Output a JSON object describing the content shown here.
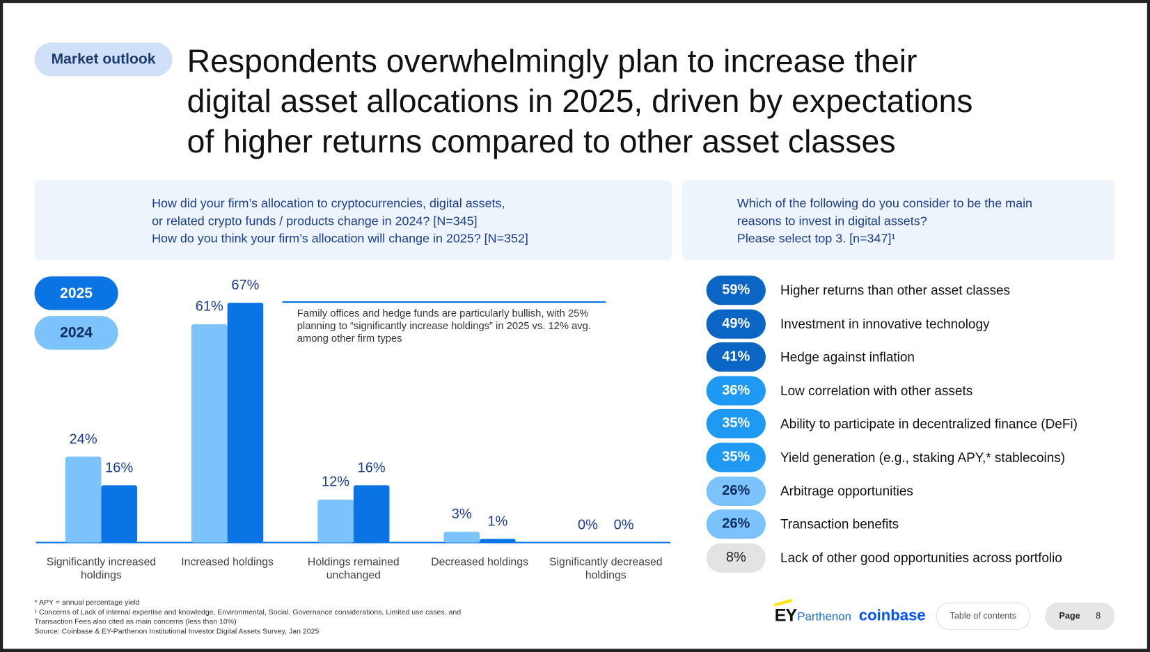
{
  "header": {
    "tag": "Market outlook",
    "title": [
      "Respondents overwhelmingly plan to increase their",
      "digital asset allocations in 2025, driven by expectations",
      "of higher returns compared to other asset classes"
    ]
  },
  "left_question": [
    "How did your firm’s allocation to cryptocurrencies, digital assets,",
    "or related crypto funds / products change in 2024? [N=345]",
    "How do you think your firm’s allocation will change in 2025? [N=352]"
  ],
  "right_question": [
    "Which of the following do you consider to be the main",
    "reasons to invest in digital assets?",
    "Please select top 3. [n=347]¹"
  ],
  "chart_data": {
    "type": "bar",
    "categories": [
      "Significantly increased holdings",
      "Increased holdings",
      "Holdings remained unchanged",
      "Decreased holdings",
      "Significantly decreased holdings"
    ],
    "series": [
      {
        "name": "2024",
        "color": "#7cc3fb",
        "values": [
          24,
          61,
          12,
          3,
          0
        ],
        "value_labels": [
          "24%",
          "61%",
          "12%",
          "3%",
          "0%"
        ]
      },
      {
        "name": "2025",
        "color": "#0a74e4",
        "values": [
          16,
          67,
          16,
          1,
          0
        ],
        "value_labels": [
          "16%",
          "67%",
          "16%",
          "1%",
          "0%"
        ]
      }
    ],
    "ylim": [
      0,
      100
    ],
    "annotation": "Family offices and hedge funds are particularly bullish, with 25% planning to “significantly increase holdings” in 2025 vs. 12% avg. among other firm types"
  },
  "reasons": [
    {
      "pct": "59%",
      "label": "Higher returns than other asset classes",
      "color": "#0a65c4"
    },
    {
      "pct": "49%",
      "label": "Investment in innovative technology",
      "color": "#0a65c4"
    },
    {
      "pct": "41%",
      "label": "Hedge against inflation",
      "color": "#0a65c4"
    },
    {
      "pct": "36%",
      "label": "Low correlation with other assets",
      "color": "#1e9af5"
    },
    {
      "pct": "35%",
      "label": "Ability to participate in decentralized finance (DeFi)",
      "color": "#1e9af5"
    },
    {
      "pct": "35%",
      "label": "Yield generation (e.g., staking APY,* stablecoins)",
      "color": "#1e9af5"
    },
    {
      "pct": "26%",
      "label": "Arbitrage opportunities",
      "color": "#7cc3fb"
    },
    {
      "pct": "26%",
      "label": "Transaction benefits",
      "color": "#7cc3fb"
    },
    {
      "pct": "8%",
      "label": "Lack of other good opportunities across portfolio",
      "color": "#e3e3e3"
    }
  ],
  "footnotes": [
    "* APY = annual percentage yield",
    "¹ Concerns of Lack of internal expertise and knowledge, Environmental, Social, Governance considerations, Limited use cases, and Transaction Fees also cited as main concerns (less than 10%)",
    "Source: Coinbase & EY-Parthenon Institutional Investor Digital Assets Survey, Jan 2025"
  ],
  "footer": {
    "ey": "EY",
    "parthenon": "Parthenon",
    "coinbase": "coinbase",
    "toc": "Table of contents",
    "page_label": "Page",
    "page_number": "8"
  }
}
